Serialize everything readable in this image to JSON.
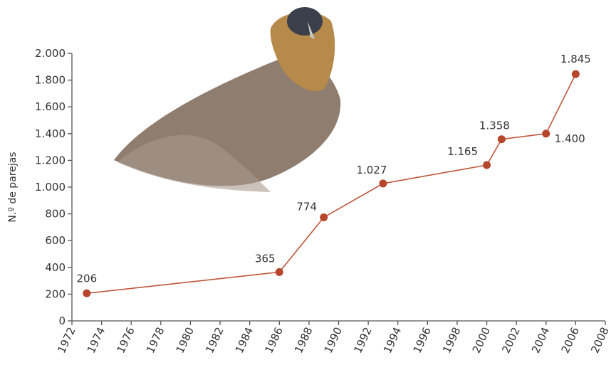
{
  "chart_data": {
    "type": "line",
    "ylabel": "N.º de parejas",
    "x": [
      1973,
      1986,
      1989,
      1993,
      2000,
      2001,
      2004,
      2006
    ],
    "series": [
      {
        "color": "#c0553a",
        "values": [
          206,
          365,
          774,
          1027,
          1165,
          1358,
          1400,
          1845
        ],
        "value_labels": [
          "206",
          "365",
          "774",
          "1.027",
          "1.165",
          "1.358",
          "1.400",
          "1.845"
        ]
      }
    ],
    "xlim": [
      1972,
      2008
    ],
    "xticks": [
      1972,
      1974,
      1976,
      1978,
      1980,
      1982,
      1984,
      1986,
      1988,
      1990,
      1992,
      1994,
      1996,
      1998,
      2000,
      2002,
      2004,
      2006,
      2008
    ],
    "ylim": [
      0,
      2000
    ],
    "yticks": [
      0,
      200,
      400,
      600,
      800,
      {
        "value": 1000,
        "label": "1.000"
      },
      {
        "value": 1200,
        "label": "1.200"
      },
      {
        "value": 1400,
        "label": "1.400"
      },
      {
        "value": 1600,
        "label": "1.600"
      },
      {
        "value": 1800,
        "label": "1.800"
      },
      {
        "value": 2000,
        "label": "2.000"
      }
    ],
    "grid": false
  }
}
